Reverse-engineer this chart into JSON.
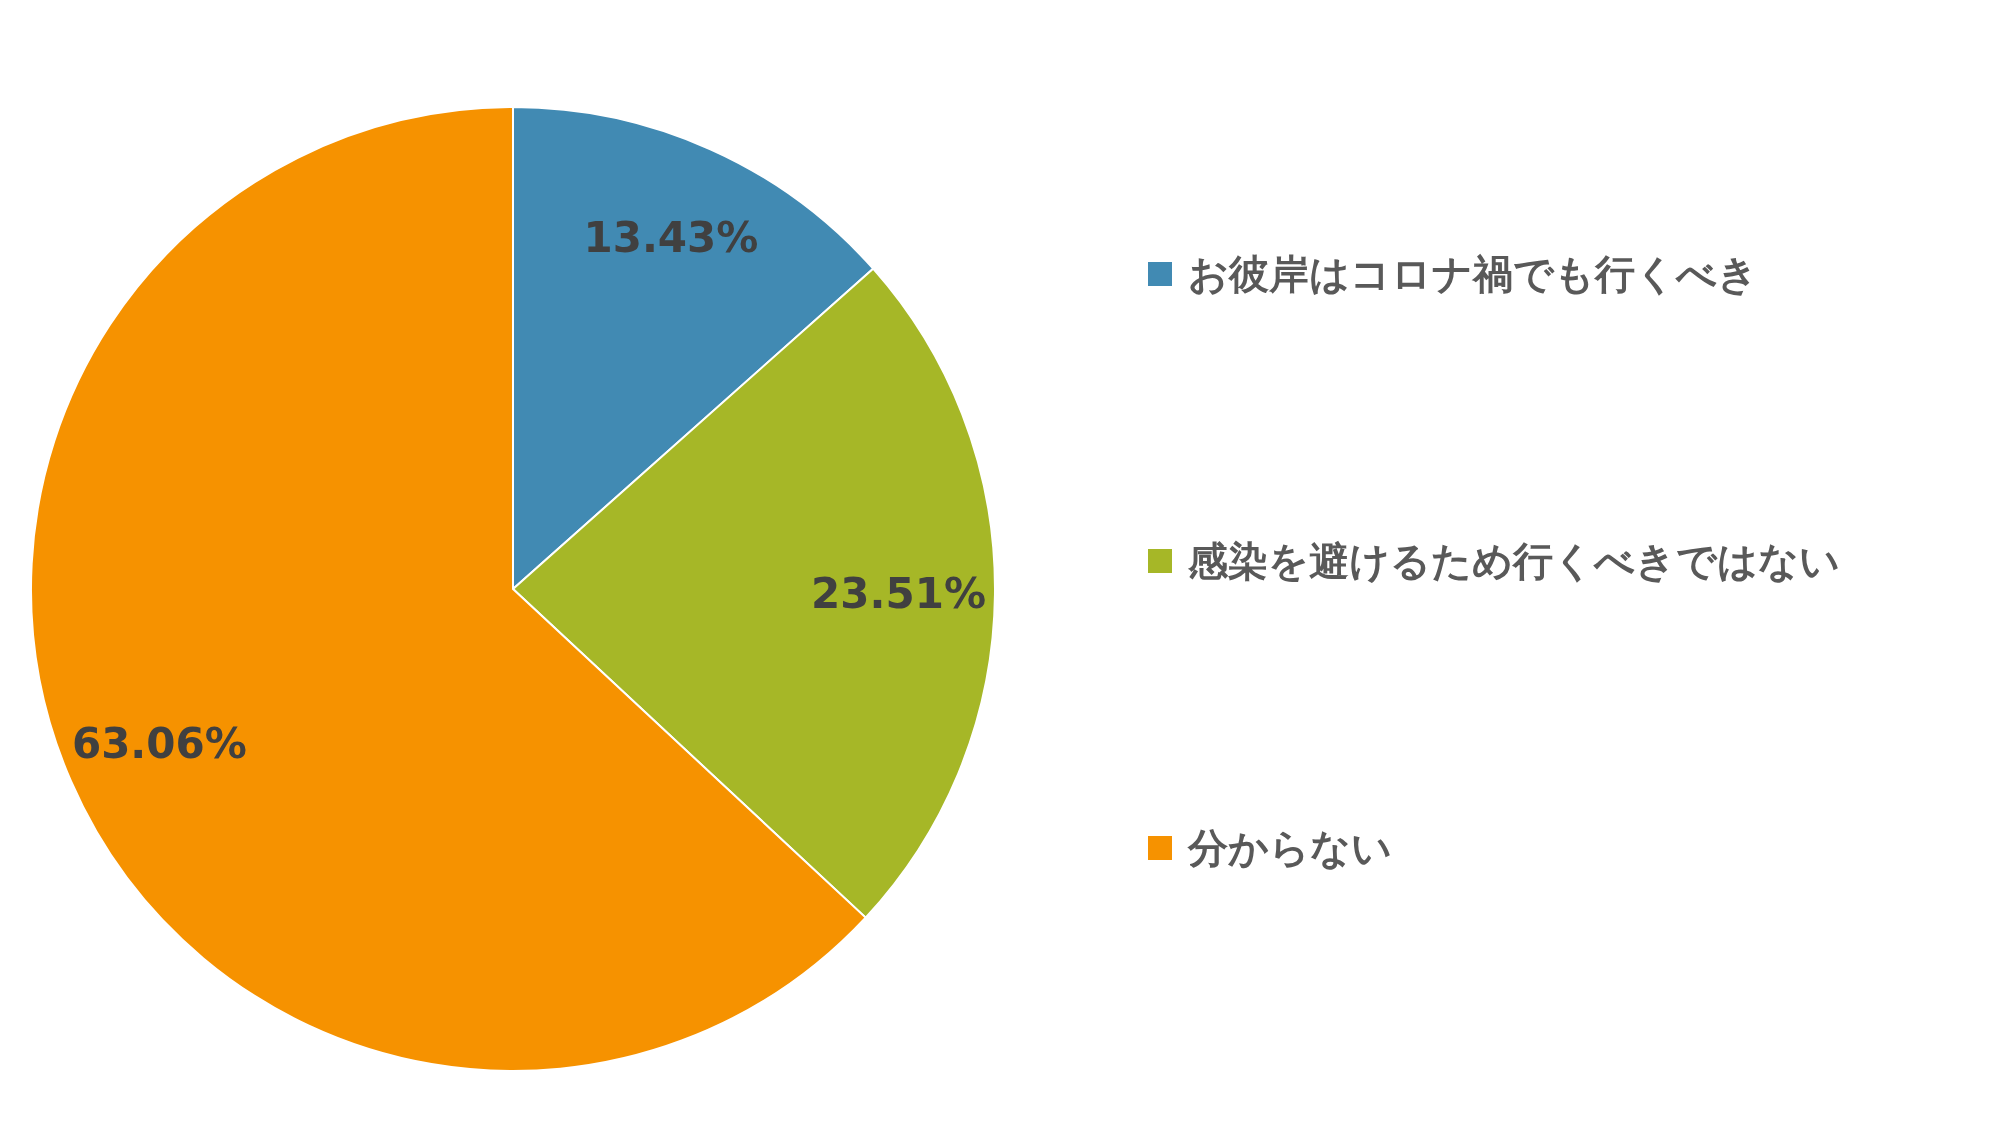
{
  "chart_data": {
    "type": "pie",
    "categories": [
      "お彼岸はコロナ禍でも行くべき",
      "感染を避けるため行くべきではない",
      "分からない"
    ],
    "values": [
      13.43,
      23.51,
      63.06
    ],
    "colors": [
      "#418ab3",
      "#a6b727",
      "#f69200"
    ],
    "value_labels": [
      "13.43%",
      "23.51%",
      "63.06%"
    ],
    "legend": "right"
  }
}
